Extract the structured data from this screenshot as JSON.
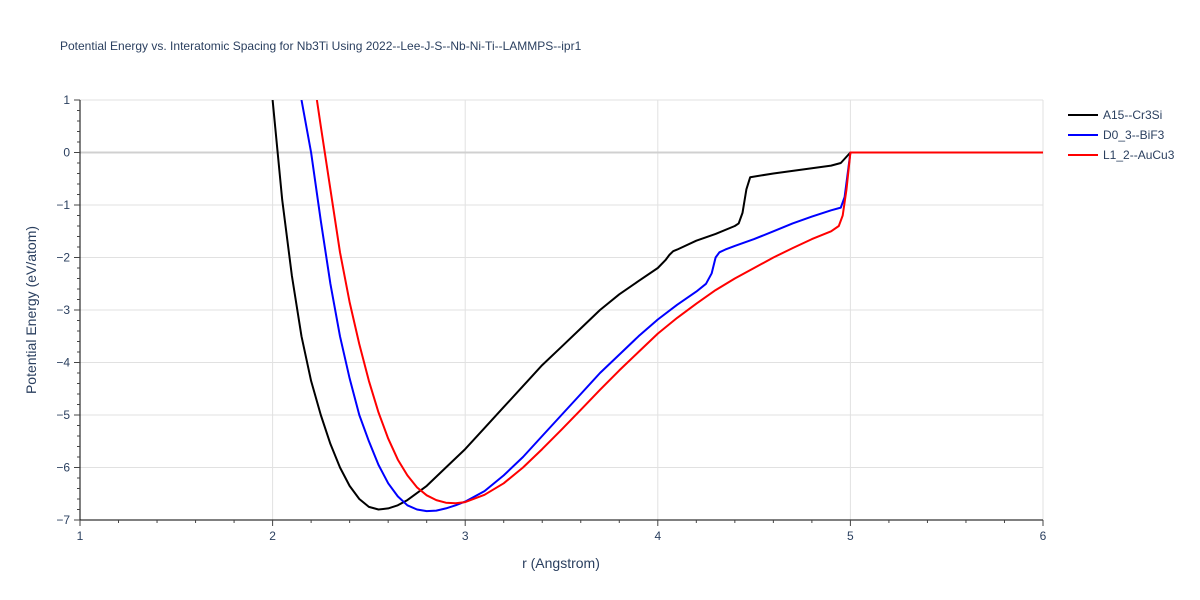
{
  "chart_data": {
    "type": "line",
    "title": "Potential Energy vs. Interatomic Spacing for Nb3Ti Using 2022--Lee-J-S--Nb-Ni-Ti--LAMMPS--ipr1",
    "xlabel": "r (Angstrom)",
    "ylabel": "Potential Energy (eV/atom)",
    "xlim": [
      1,
      6
    ],
    "ylim": [
      -7,
      1
    ],
    "xticks": [
      "1",
      "2",
      "3",
      "4",
      "5",
      "6"
    ],
    "yticks": [
      "1",
      "0",
      "−1",
      "−2",
      "−3",
      "−4",
      "−5",
      "−6",
      "−7"
    ],
    "grid": true,
    "legend_position": "top-right",
    "series": [
      {
        "name": "A15--Cr3Si",
        "color": "#000000",
        "x": [
          2.0,
          2.05,
          2.1,
          2.15,
          2.2,
          2.25,
          2.3,
          2.35,
          2.4,
          2.45,
          2.5,
          2.55,
          2.6,
          2.65,
          2.7,
          2.8,
          2.9,
          3.0,
          3.1,
          3.2,
          3.3,
          3.4,
          3.5,
          3.6,
          3.7,
          3.8,
          3.9,
          4.0,
          4.04,
          4.06,
          4.08,
          4.1,
          4.2,
          4.3,
          4.4,
          4.42,
          4.44,
          4.46,
          4.48,
          4.6,
          4.7,
          4.8,
          4.9,
          4.95,
          5.0,
          5.5,
          6.0
        ],
        "y": [
          1.0,
          -0.9,
          -2.35,
          -3.5,
          -4.35,
          -5.0,
          -5.55,
          -6.0,
          -6.35,
          -6.6,
          -6.75,
          -6.8,
          -6.78,
          -6.72,
          -6.62,
          -6.35,
          -6.0,
          -5.65,
          -5.25,
          -4.85,
          -4.45,
          -4.05,
          -3.7,
          -3.35,
          -3.0,
          -2.7,
          -2.45,
          -2.2,
          -2.05,
          -1.95,
          -1.88,
          -1.85,
          -1.68,
          -1.55,
          -1.4,
          -1.35,
          -1.15,
          -0.7,
          -0.47,
          -0.4,
          -0.35,
          -0.3,
          -0.25,
          -0.2,
          0.0,
          0.0,
          0.0
        ]
      },
      {
        "name": "D0_3--BiF3",
        "color": "#0000ff",
        "x": [
          2.15,
          2.2,
          2.25,
          2.3,
          2.35,
          2.4,
          2.45,
          2.5,
          2.55,
          2.6,
          2.65,
          2.7,
          2.75,
          2.8,
          2.85,
          2.9,
          2.95,
          3.0,
          3.1,
          3.2,
          3.3,
          3.4,
          3.5,
          3.6,
          3.7,
          3.8,
          3.9,
          4.0,
          4.1,
          4.2,
          4.25,
          4.28,
          4.3,
          4.32,
          4.35,
          4.4,
          4.5,
          4.6,
          4.7,
          4.8,
          4.9,
          4.95,
          4.97,
          5.0,
          5.5,
          6.0
        ],
        "y": [
          1.0,
          0.0,
          -1.3,
          -2.5,
          -3.5,
          -4.3,
          -5.0,
          -5.5,
          -5.95,
          -6.3,
          -6.55,
          -6.72,
          -6.8,
          -6.83,
          -6.82,
          -6.78,
          -6.72,
          -6.65,
          -6.45,
          -6.15,
          -5.8,
          -5.4,
          -5.0,
          -4.6,
          -4.2,
          -3.85,
          -3.5,
          -3.18,
          -2.9,
          -2.65,
          -2.5,
          -2.3,
          -2.0,
          -1.9,
          -1.85,
          -1.78,
          -1.65,
          -1.5,
          -1.35,
          -1.22,
          -1.1,
          -1.05,
          -0.85,
          0.0,
          0.0,
          0.0
        ]
      },
      {
        "name": "L1_2--AuCu3",
        "color": "#ff0000",
        "x": [
          2.23,
          2.25,
          2.3,
          2.35,
          2.4,
          2.45,
          2.5,
          2.55,
          2.6,
          2.65,
          2.7,
          2.75,
          2.8,
          2.85,
          2.9,
          2.95,
          3.0,
          3.1,
          3.2,
          3.3,
          3.4,
          3.5,
          3.6,
          3.7,
          3.8,
          3.9,
          4.0,
          4.1,
          4.2,
          4.3,
          4.4,
          4.5,
          4.6,
          4.7,
          4.8,
          4.9,
          4.94,
          4.96,
          4.98,
          5.0,
          5.5,
          6.0
        ],
        "y": [
          1.0,
          0.5,
          -0.7,
          -1.9,
          -2.85,
          -3.65,
          -4.35,
          -4.95,
          -5.45,
          -5.85,
          -6.15,
          -6.38,
          -6.53,
          -6.62,
          -6.67,
          -6.68,
          -6.66,
          -6.52,
          -6.3,
          -6.0,
          -5.65,
          -5.28,
          -4.9,
          -4.52,
          -4.15,
          -3.8,
          -3.45,
          -3.15,
          -2.88,
          -2.62,
          -2.4,
          -2.2,
          -2.0,
          -1.82,
          -1.65,
          -1.5,
          -1.4,
          -1.2,
          -0.7,
          0.0,
          0.0,
          0.0
        ]
      }
    ]
  }
}
